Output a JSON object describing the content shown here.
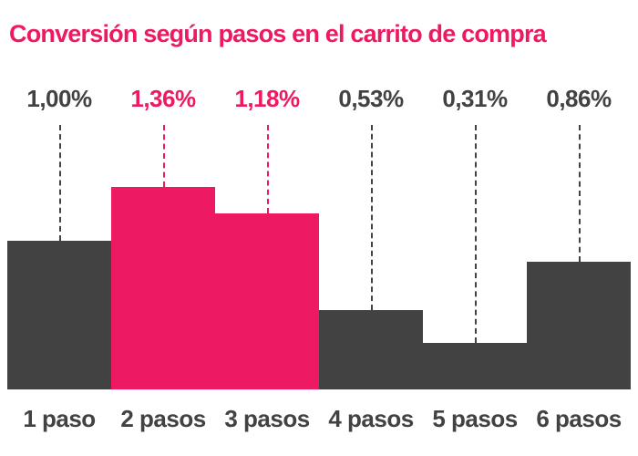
{
  "chart_data": {
    "type": "bar",
    "title": "Conversión según pasos en el carrito de compra",
    "categories": [
      "1 paso",
      "2 pasos",
      "3 pasos",
      "4 pasos",
      "5 pasos",
      "6 pasos"
    ],
    "values": [
      1.0,
      1.36,
      1.18,
      0.53,
      0.31,
      0.86
    ],
    "value_labels": [
      "1,00%",
      "1,36%",
      "1,18%",
      "0,53%",
      "0,31%",
      "0,86%"
    ],
    "highlighted": [
      false,
      true,
      true,
      false,
      false,
      false
    ],
    "xlabel": "",
    "ylabel": "",
    "ylim": [
      0,
      1.36
    ],
    "grid": false,
    "legend": false,
    "colors": {
      "accent": "#ed1a63",
      "bar_default": "#424242",
      "bar_highlight": "#ed1a63",
      "text_default": "#424242",
      "background": "#ffffff"
    }
  }
}
